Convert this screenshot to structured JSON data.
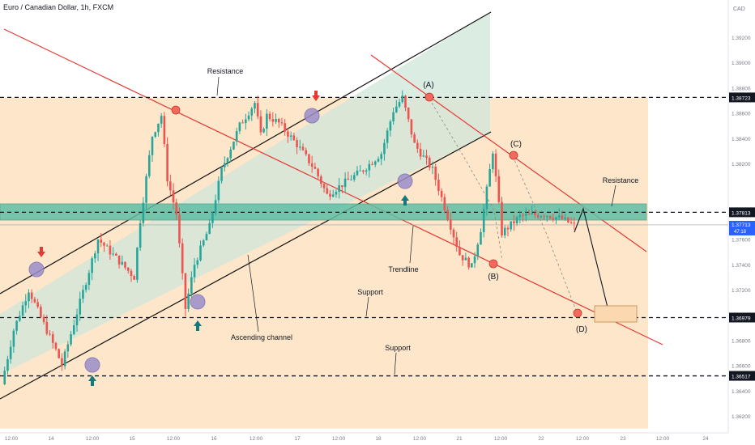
{
  "header": {
    "title": "Euro / Canadian Dollar, 1h, FXCM"
  },
  "colors": {
    "up": "#26a69a",
    "down": "#ef5350",
    "trendline": "#e53935",
    "channel_line": "#111111",
    "channel_fill": "#cfe6d9",
    "zone_fill": "#fde3c4",
    "sr_zone": "#5fbfa5",
    "marker_circle": "#9b8ec9",
    "arrow_up": "#16787d",
    "arrow_down": "#e53935",
    "label_bg": "#131722"
  },
  "axis": {
    "currency": "CAD",
    "price_ticks": [
      "1.39200",
      "1.39000",
      "1.38800",
      "1.38600",
      "1.38400",
      "1.38200",
      "1.37800",
      "1.37600",
      "1.37400",
      "1.37200",
      "1.36800",
      "1.36600",
      "1.36400",
      "1.36200"
    ],
    "time_ticks": [
      "12:00",
      "14",
      "12:00",
      "15",
      "12:00",
      "16",
      "12:00",
      "17",
      "12:00",
      "18",
      "12:00",
      "21",
      "12:00",
      "22",
      "12:00",
      "23",
      "12:00",
      "24"
    ],
    "price_labels": [
      {
        "price": "1.38723",
        "kind": "level"
      },
      {
        "price": "1.37813",
        "kind": "level"
      },
      {
        "price": "1.37713",
        "kind": "current",
        "countdown": "47:18"
      },
      {
        "price": "1.36979",
        "kind": "level"
      },
      {
        "price": "1.36517",
        "kind": "level"
      }
    ]
  },
  "annotations": {
    "resistance_top": "Resistance",
    "resistance_right": "Resistance",
    "support_1": "Support",
    "support_2": "Support",
    "trendline": "Trendline",
    "ascending_channel": "Ascending channel",
    "wave_a": "(A)",
    "wave_b": "(B)",
    "wave_c": "(C)",
    "wave_d": "(D)"
  },
  "chart_data": {
    "type": "candlestick",
    "title": "Euro / Canadian Dollar, 1h, FXCM",
    "xlabel": "",
    "ylabel": "CAD",
    "ylim": [
      1.361,
      1.3945
    ],
    "horizontal_levels": [
      1.38723,
      1.37813,
      1.36979,
      1.36517
    ],
    "current_price": 1.37713,
    "support_resistance_zone": [
      1.3768,
      1.3795
    ],
    "waypoints": [
      [
        0,
        1.3645
      ],
      [
        4,
        1.3688
      ],
      [
        9,
        1.372
      ],
      [
        13,
        1.3698
      ],
      [
        18,
        1.3672
      ],
      [
        20,
        1.366
      ],
      [
        26,
        1.371
      ],
      [
        32,
        1.376
      ],
      [
        40,
        1.374
      ],
      [
        44,
        1.373
      ],
      [
        46,
        1.3775
      ],
      [
        50,
        1.3842
      ],
      [
        53,
        1.3858
      ],
      [
        55,
        1.3808
      ],
      [
        58,
        1.378
      ],
      [
        61,
        1.3705
      ],
      [
        64,
        1.374
      ],
      [
        69,
        1.377
      ],
      [
        73,
        1.3815
      ],
      [
        79,
        1.385
      ],
      [
        84,
        1.3868
      ],
      [
        86,
        1.3842
      ],
      [
        88,
        1.3858
      ],
      [
        92,
        1.3852
      ],
      [
        98,
        1.3835
      ],
      [
        104,
        1.3815
      ],
      [
        108,
        1.3795
      ],
      [
        114,
        1.3805
      ],
      [
        120,
        1.3815
      ],
      [
        126,
        1.3828
      ],
      [
        130,
        1.3862
      ],
      [
        133,
        1.3872
      ],
      [
        137,
        1.3835
      ],
      [
        143,
        1.3815
      ],
      [
        148,
        1.3778
      ],
      [
        152,
        1.3748
      ],
      [
        156,
        1.3738
      ],
      [
        159,
        1.3768
      ],
      [
        163,
        1.383
      ],
      [
        166,
        1.3765
      ],
      [
        172,
        1.3778
      ],
      [
        180,
        1.378
      ],
      [
        186,
        1.3776
      ],
      [
        190,
        1.3771
      ]
    ]
  }
}
